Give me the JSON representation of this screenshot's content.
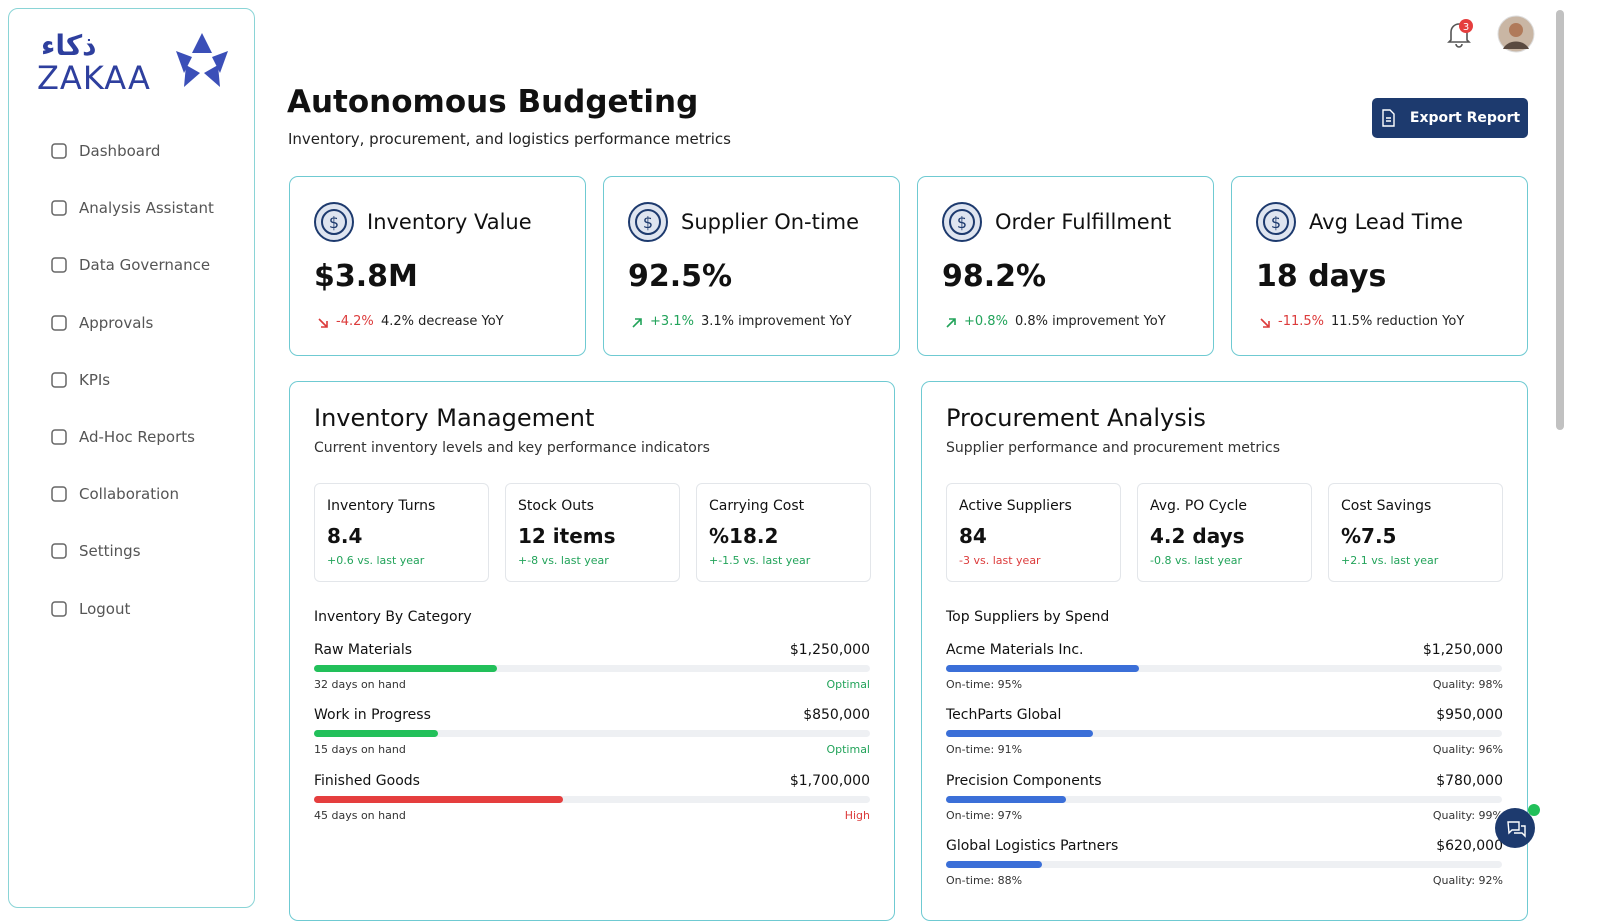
{
  "logo": {
    "text": "ZAKAA",
    "arabic": "ذكاء"
  },
  "nav": [
    "Dashboard",
    "Analysis Assistant",
    "Data Governance",
    "Approvals",
    "KPIs",
    "Ad-Hoc Reports",
    "Collaboration",
    "Settings",
    "Logout"
  ],
  "notifications": 3,
  "header": {
    "title": "Autonomous Budgeting",
    "subtitle": "Inventory, procurement, and logistics performance metrics",
    "export_button": "Export Report"
  },
  "kpi_cards": [
    {
      "title": "Inventory Value",
      "value": "$3.8M",
      "change": "-4.2%",
      "description": "4.2% decrease YoY",
      "color": "#dc3b3b"
    },
    {
      "title": "Supplier On-time",
      "value": "92.5%",
      "change": "+3.1%",
      "description": "3.1% improvement YoY",
      "color": "#22a35a"
    },
    {
      "title": "Order Fulfillment",
      "value": "98.2%",
      "change": "+0.8%",
      "description": "0.8% improvement YoY",
      "color": "#22a35a"
    },
    {
      "title": "Avg Lead Time",
      "value": "18 days",
      "change": "-11.5%",
      "description": "11.5% reduction YoY",
      "color": "#dc3b3b"
    }
  ],
  "panels": [
    {
      "title": "Inventory Management",
      "subtitle": "Current inventory levels and key performance indicators",
      "metrics": [
        {
          "label": "Inventory Turns",
          "value": "8.4",
          "change": "+0.6 vs. last year",
          "color": "#22a35a"
        },
        {
          "label": "Stock Outs",
          "value": "12 items",
          "change": "+-8 vs. last year",
          "color": "#22a35a"
        },
        {
          "label": "Carrying Cost",
          "value": "%18.2",
          "change": "+-1.5 vs. last year",
          "color": "#22a35a"
        }
      ],
      "list_title": "Inventory By Category",
      "items": [
        {
          "name": "Raw Materials",
          "amount": 1250000,
          "amount_label": "$1,250,000",
          "left": "32 days on hand",
          "right": "Optimal",
          "right_color": "#22a35a",
          "bar_color": "#22c05a"
        },
        {
          "name": "Work in Progress",
          "amount": 850000,
          "amount_label": "$850,000",
          "left": "15 days on hand",
          "right": "Optimal",
          "right_color": "#22a35a",
          "bar_color": "#22c05a"
        },
        {
          "name": "Finished Goods",
          "amount": 1700000,
          "amount_label": "$1,700,000",
          "left": "45 days on hand",
          "right": "High",
          "right_color": "#dc3b3b",
          "bar_color": "#e53e3e"
        }
      ]
    },
    {
      "title": "Procurement Analysis",
      "subtitle": "Supplier performance and procurement metrics",
      "metrics": [
        {
          "label": "Active Suppliers",
          "value": "84",
          "change": "-3 vs. last year",
          "color": "#dc3b3b"
        },
        {
          "label": "Avg. PO Cycle",
          "value": "4.2 days",
          "change": "-0.8 vs. last year",
          "color": "#22a35a"
        },
        {
          "label": "Cost Savings",
          "value": "%7.5",
          "change": "+2.1 vs. last year",
          "color": "#22a35a"
        }
      ],
      "list_title": "Top Suppliers by Spend",
      "items": [
        {
          "name": "Acme Materials Inc.",
          "amount": 1250000,
          "amount_label": "$1,250,000",
          "left": "On-time: 95%",
          "right": "Quality: 98%",
          "right_color": "#333",
          "bar_color": "#3b6fd8"
        },
        {
          "name": "TechParts Global",
          "amount": 950000,
          "amount_label": "$950,000",
          "left": "On-time: 91%",
          "right": "Quality: 96%",
          "right_color": "#333",
          "bar_color": "#3b6fd8"
        },
        {
          "name": "Precision Components",
          "amount": 780000,
          "amount_label": "$780,000",
          "left": "On-time: 97%",
          "right": "Quality: 99%",
          "right_color": "#333",
          "bar_color": "#3b6fd8"
        },
        {
          "name": "Global Logistics Partners",
          "amount": 620000,
          "amount_label": "$620,000",
          "left": "On-time: 88%",
          "right": "Quality: 92%",
          "right_color": "#333",
          "bar_color": "#3b6fd8"
        }
      ]
    }
  ]
}
